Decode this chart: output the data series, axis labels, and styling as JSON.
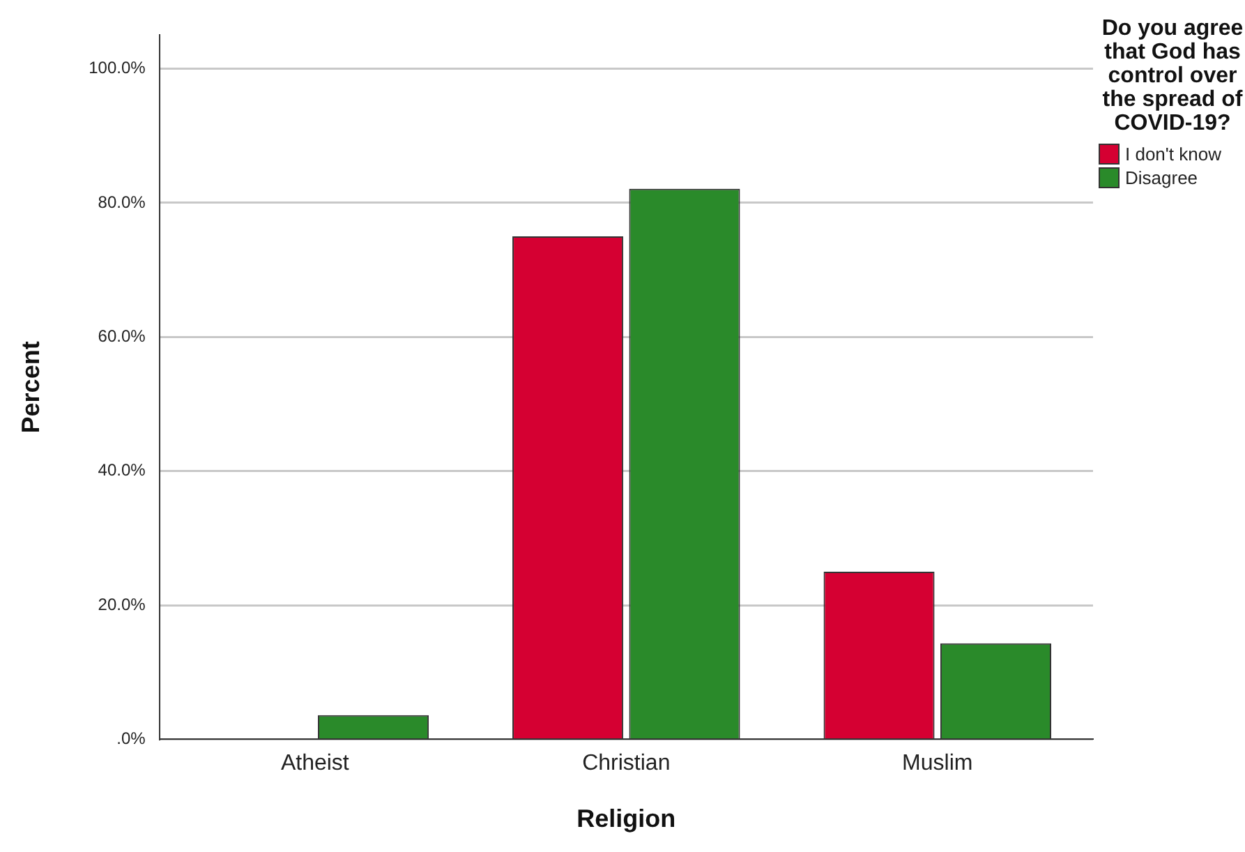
{
  "chart_data": {
    "type": "bar",
    "xlabel": "Religion",
    "ylabel": "Percent",
    "legend_title": "Do you agree that God has control over the spread of COVID-19?",
    "categories": [
      "Atheist",
      "Christian",
      "Muslim"
    ],
    "series": [
      {
        "name": "I don't know",
        "color": "#d50032",
        "values": [
          0,
          75,
          25
        ]
      },
      {
        "name": "Disagree",
        "color": "#2a8a2a",
        "values": [
          3.6,
          82.1,
          14.3
        ]
      }
    ],
    "ylim": [
      0,
      105
    ],
    "yticks": [
      {
        "value": 0,
        "label": ".0%"
      },
      {
        "value": 20,
        "label": "20.0%"
      },
      {
        "value": 40,
        "label": "40.0%"
      },
      {
        "value": 60,
        "label": "60.0%"
      },
      {
        "value": 80,
        "label": "80.0%"
      },
      {
        "value": 100,
        "label": "100.0%"
      }
    ],
    "grid": "y",
    "legend": "top right"
  }
}
